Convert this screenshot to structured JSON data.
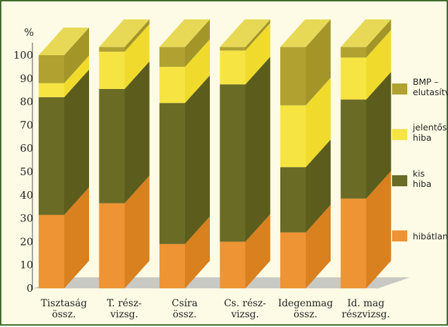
{
  "chart_data": {
    "type": "bar",
    "stacked": true,
    "three_d": true,
    "title": "",
    "xlabel": "",
    "ylabel": "%",
    "ylim": [
      0,
      100
    ],
    "yticks": [
      0,
      10,
      20,
      30,
      40,
      50,
      60,
      70,
      80,
      90,
      100
    ],
    "grid": false,
    "legend_position": "right",
    "categories": [
      [
        "Tisztaság",
        "össz."
      ],
      [
        "T. rész-",
        "vizsg."
      ],
      [
        "Csíra",
        "össz."
      ],
      [
        "Cs. rész-",
        "vizsg."
      ],
      [
        "Idegenmag",
        "össz."
      ],
      [
        "Id. mag",
        "részvizsg."
      ]
    ],
    "series": [
      {
        "name": [
          "hibátlan"
        ],
        "color": "#ee9434",
        "color_dark": "#d9801f",
        "values": [
          31.5,
          36.5,
          19,
          20,
          24,
          38.5
        ]
      },
      {
        "name": [
          "kis",
          "hiba"
        ],
        "color": "#6a6b24",
        "color_dark": "#5c5d1c",
        "values": [
          50.5,
          49,
          60.5,
          67.5,
          28,
          42.5
        ]
      },
      {
        "name": [
          "jelentős",
          "hiba"
        ],
        "color": "#f6e443",
        "color_dark": "#f0da2c",
        "values": [
          6,
          16,
          15.5,
          14.5,
          26.5,
          18
        ]
      },
      {
        "name": [
          "BMP –",
          "elutasítva"
        ],
        "color": "#b1a130",
        "color_dark": "#a39528",
        "values": [
          12,
          2,
          8.5,
          1.5,
          25,
          4.5
        ]
      }
    ]
  }
}
